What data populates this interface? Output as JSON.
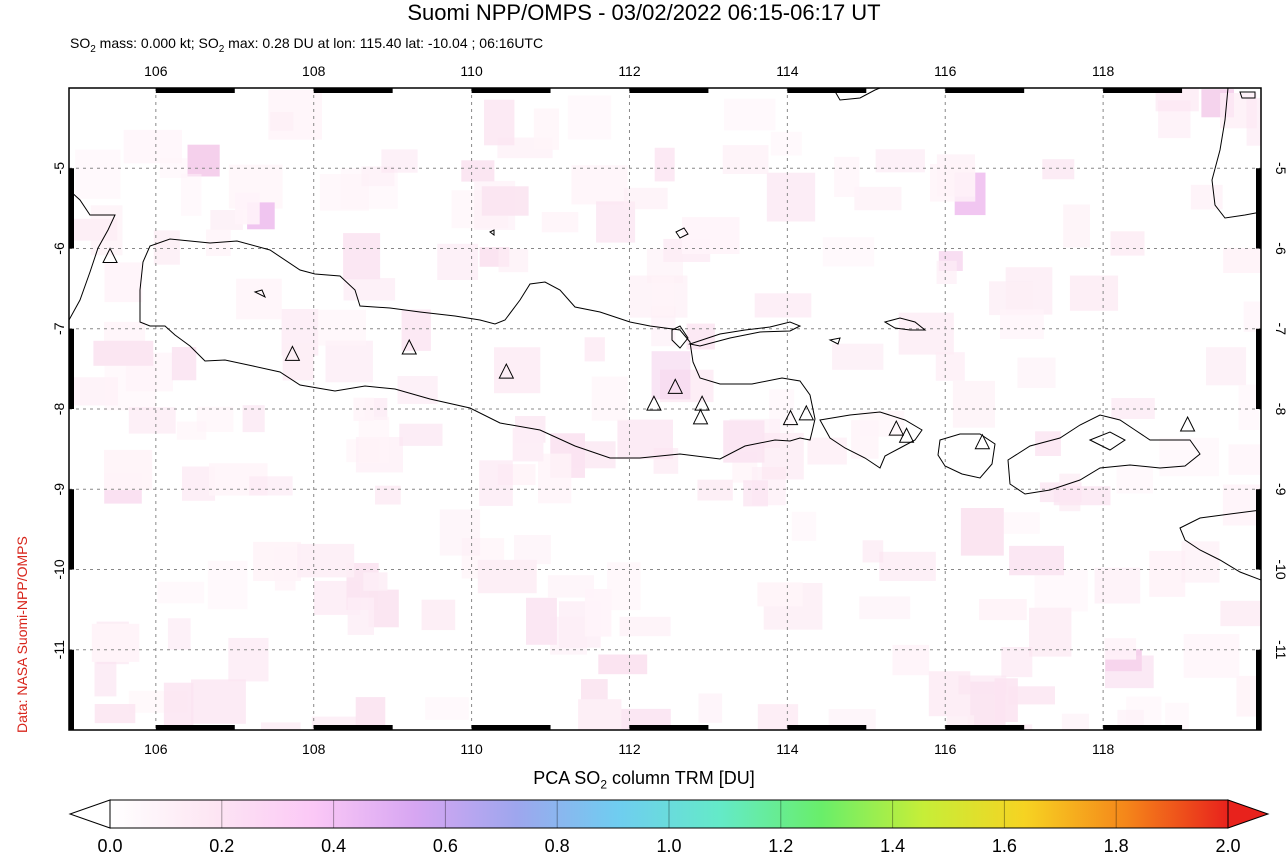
{
  "title": "Suomi NPP/OMPS - 03/02/2022 06:15-06:17 UT",
  "subtitle": {
    "p1": "SO",
    "sub1": "2",
    "p2": " mass: 0.000 kt; SO",
    "sub2": "2",
    "p3": " max: 0.28 DU at lon: 115.40 lat: -10.04 ; 06:16UTC"
  },
  "credit": "Data: NASA Suomi-NPP/OMPS",
  "map": {
    "lon_range": [
      104.9,
      120.0
    ],
    "lat_range": [
      -12.0,
      -4.0
    ],
    "lon_ticks": [
      106,
      108,
      110,
      112,
      114,
      116,
      118
    ],
    "lat_ticks": [
      -5,
      -6,
      -7,
      -8,
      -9,
      -10,
      -11
    ],
    "lon_labels": [
      "106",
      "108",
      "110",
      "112",
      "114",
      "116",
      "118"
    ],
    "lat_labels": [
      "-5",
      "-6",
      "-7",
      "-8",
      "-9",
      "-10",
      "-11"
    ],
    "grid": true,
    "volcanoes": [
      [
        105.42,
        -6.1
      ],
      [
        107.73,
        -7.32
      ],
      [
        109.21,
        -7.24
      ],
      [
        110.44,
        -7.54
      ],
      [
        112.31,
        -7.94
      ],
      [
        112.58,
        -7.73
      ],
      [
        112.92,
        -7.94
      ],
      [
        112.9,
        -8.11
      ],
      [
        114.04,
        -8.12
      ],
      [
        114.24,
        -8.06
      ],
      [
        115.38,
        -8.25
      ],
      [
        115.51,
        -8.34
      ],
      [
        116.47,
        -8.42
      ],
      [
        119.07,
        -8.2
      ]
    ]
  },
  "colorbar": {
    "title_prefix": "PCA SO",
    "title_sub": "2",
    "title_suffix": " column TRM [DU]",
    "ticks": [
      "0.0",
      "0.2",
      "0.4",
      "0.6",
      "0.8",
      "1.0",
      "1.2",
      "1.4",
      "1.6",
      "1.8",
      "2.0"
    ],
    "range": [
      0,
      2
    ],
    "colors": [
      "#ffffff",
      "#fde6f3",
      "#fbc8f6",
      "#d7a6f2",
      "#9ea6ee",
      "#6fcdf0",
      "#64eac8",
      "#69ee6a",
      "#c6ee38",
      "#f6d322",
      "#f5861a",
      "#e8221c"
    ]
  }
}
